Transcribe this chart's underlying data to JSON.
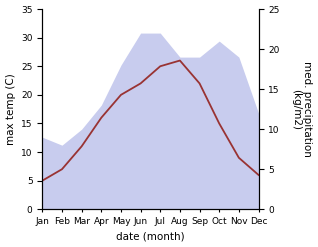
{
  "months": [
    "Jan",
    "Feb",
    "Mar",
    "Apr",
    "May",
    "Jun",
    "Jul",
    "Aug",
    "Sep",
    "Oct",
    "Nov",
    "Dec"
  ],
  "temperature": [
    5,
    7,
    11,
    16,
    20,
    22,
    25,
    26,
    22,
    15,
    9,
    6
  ],
  "precipitation": [
    9,
    8,
    10,
    13,
    18,
    22,
    22,
    19,
    19,
    21,
    19,
    12
  ],
  "temp_color": "#993333",
  "precip_fill_color": "#c8ccee",
  "ylabel_left": "max temp (C)",
  "ylabel_right": "med. precipitation\n(kg/m2)",
  "xlabel": "date (month)",
  "ylim_left": [
    0,
    35
  ],
  "ylim_right": [
    0,
    25
  ],
  "bg_color": "#ffffff",
  "label_fontsize": 7.5
}
